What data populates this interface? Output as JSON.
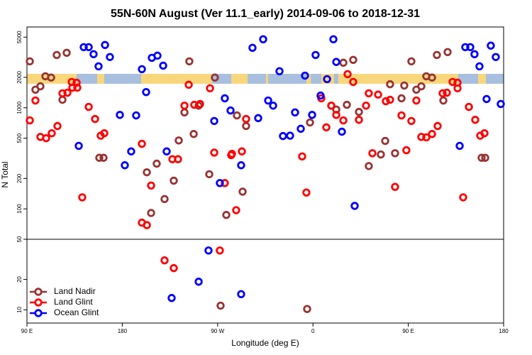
{
  "chart_data": [
    {
      "type": "scatter",
      "title": "55N-60N August (Ver 11.1_early)   2014-09-06 to 2018-12-31",
      "ylabel": "N Total",
      "log": true,
      "ylim": [
        50,
        6300
      ],
      "yticks": [
        100,
        200,
        500,
        1000,
        2000,
        5000
      ],
      "series": [
        {
          "color": "#993333",
          "x": [
            92.7,
            98.0,
            102.7,
            107.4,
            112.8,
            118.1,
            123.5,
            127.5,
            158.3,
            162.3,
            203.2,
            207.2,
            212.5,
            219.9,
            228.6,
            233.3,
            238.7,
            243.3,
            247.4,
            252.1,
            262.1,
            267.4,
            278.2,
            288.2,
            293.6,
            296.9,
            357.2,
            377.3,
            382.0,
            388.7,
            392.0,
            398.0,
            403.4,
            412.7,
            424.1,
            428.2,
            432.8,
            437.5,
            443.6,
            446.2,
            452.9,
            457.6,
            462.3,
            467.0,
            472.4,
            477.0,
            483.1,
            487.1,
            519.2,
            522.6
          ],
          "values": [
            2880,
            1510,
            1630,
            2050,
            1990,
            3330,
            1200,
            3500,
            320,
            320,
            230,
            91,
            280,
            125,
            190,
            475,
            900,
            2880,
            550,
            1050,
            220,
            1990,
            87,
            840,
            148,
            660,
            715,
            1050,
            960,
            2790,
            1070,
            2980,
            910,
            265,
            345,
            470,
            1710,
            355,
            1240,
            1660,
            2880,
            1510,
            1630,
            2050,
            1990,
            3330,
            1180,
            3560,
            320,
            320
          ]
        },
        {
          "color": "#ff0000",
          "x": [
            92.7,
            98.0,
            102.7,
            108.1,
            113.4,
            118.8,
            123.5,
            128.2,
            132.2,
            132.9,
            137.5,
            136.9,
            142.2,
            148.3,
            154.3,
            159.6,
            163.0,
            198.5,
            203.2,
            207.2,
            198.5,
            227.3,
            232.6,
            238.7,
            242.7,
            248.0,
            253.4,
            262.8,
            266.8,
            276.8,
            282.8,
            283.5,
            287.5,
            292.9,
            296.9,
            353.8,
            349.8,
            367.9,
            372.6,
            377.3,
            382.0,
            388.7,
            392.7,
            398.0,
            403.4,
            410.1,
            412.7,
            416.1,
            421.5,
            428.8,
            432.8,
            437.5,
            443.6,
            448.2,
            452.9,
            457.6,
            462.3,
            467.0,
            472.4,
            477.7,
            482.4,
            486.4,
            491.8,
            496.5,
            496.5,
            501.8,
            507.2,
            513.2,
            517.9,
            521.9
          ],
          "values": [
            750,
            1180,
            515,
            500,
            560,
            660,
            1390,
            1410,
            1800,
            1580,
            1580,
            1770,
            130,
            1020,
            775,
            530,
            560,
            73,
            69,
            170,
            440,
            310,
            310,
            1050,
            1690,
            1070,
            1090,
            1560,
            360,
            180,
            340,
            350,
            97,
            370,
            775,
            145,
            330,
            1240,
            640,
            1050,
            850,
            750,
            2150,
            1800,
            760,
            1050,
            1390,
            355,
            1350,
            1160,
            1200,
            165,
            840,
            380,
            740,
            1180,
            515,
            510,
            550,
            660,
            1390,
            1410,
            1800,
            1770,
            1560,
            130,
            1020,
            760,
            530,
            560
          ]
        },
        {
          "color": "#0000ff",
          "x": [
            138.9,
            143.6,
            148.3,
            152.9,
            157.6,
            163.7,
            168.3,
            177.7,
            182.4,
            188.4,
            193.1,
            198.5,
            202.5,
            207.9,
            213.2,
            218.6,
            221.9,
            266.8,
            272.1,
            276.8,
            282.2,
            292.2,
            302.9,
            308.3,
            313.0,
            317.7,
            322.4,
            328.4,
            331.7,
            338.4,
            343.1,
            348.5,
            352.5,
            359.2,
            362.5,
            367.2,
            373.3,
            379.3,
            382.0,
            387.3,
            399.4,
            498.5,
            503.8,
            508.5,
            512.5,
            517.2,
            523.9,
            527.9,
            532.6,
            537.3
          ],
          "values": [
            420,
            3980,
            3980,
            3390,
            2570,
            4180,
            3180,
            850,
            270,
            370,
            840,
            2410,
            1430,
            3120,
            3280,
            2610,
            370,
            740,
            180,
            1240,
            940,
            270,
            3920,
            790,
            4760,
            1180,
            1050,
            2300,
            525,
            530,
            900,
            620,
            2080,
            850,
            3330,
            1320,
            1920,
            4760,
            2840,
            580,
            107,
            420,
            3980,
            3980,
            3390,
            2570,
            1220,
            4120,
            3180,
            1090
          ]
        }
      ]
    },
    {
      "type": "scatter",
      "xlabel": "Longitude (deg E)",
      "log": true,
      "legend": "lower left",
      "xlim": [
        90,
        540
      ],
      "xticks": [
        {
          "value": 90,
          "label": "90 E"
        },
        {
          "value": 180,
          "label": "180"
        },
        {
          "value": 270,
          "label": "90 W"
        },
        {
          "value": 360,
          "label": "0"
        },
        {
          "value": 450,
          "label": "90 E"
        },
        {
          "value": 540,
          "label": "180"
        }
      ],
      "ylim": [
        7.4,
        50
      ],
      "yticks": [
        10,
        20,
        50
      ],
      "series": [
        {
          "name": "Land Nadir",
          "color": "#993333",
          "x": [
            272.8,
            354.5
          ],
          "values": [
            11.0,
            10.2
          ]
        },
        {
          "name": "Land Glint",
          "color": "#ff0000",
          "x": [
            219.9,
            228.6,
            272.1
          ],
          "values": [
            30.9,
            25.9,
            38.7
          ]
        },
        {
          "name": "Ocean Glint",
          "color": "#0000ff",
          "x": [
            261.4,
            252.1,
            226.6,
            292.2
          ],
          "values": [
            38.7,
            19.0,
            13.1,
            14.3
          ]
        }
      ]
    }
  ]
}
